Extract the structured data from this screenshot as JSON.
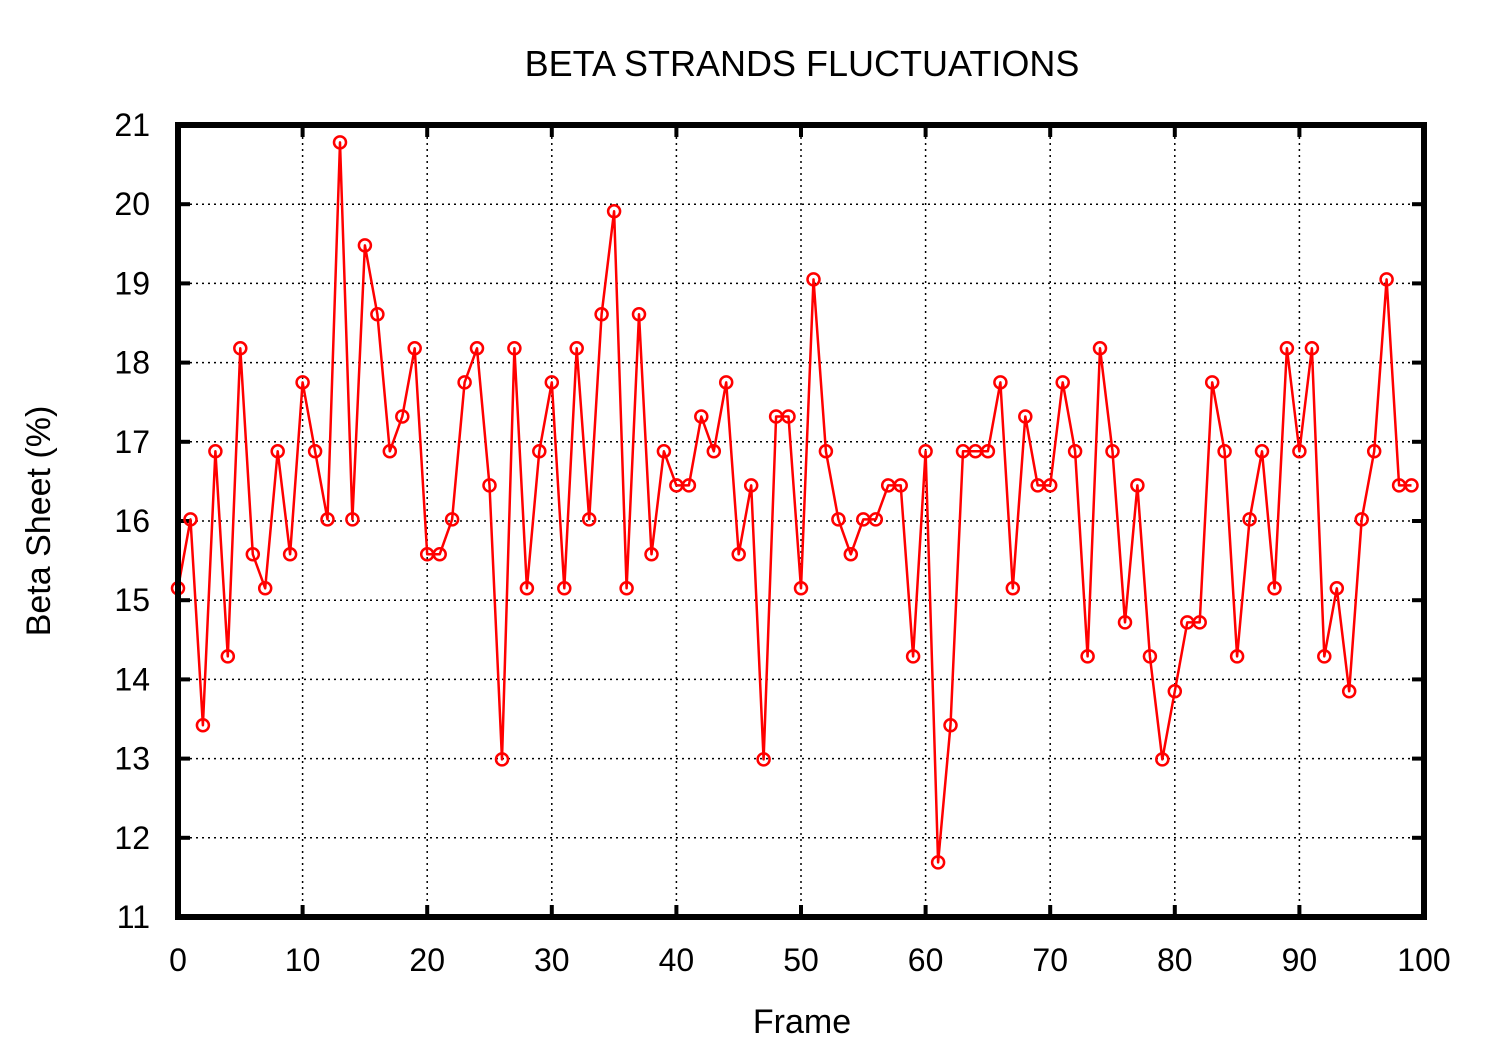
{
  "chart_data": {
    "type": "line",
    "title": "BETA STRANDS FLUCTUATIONS",
    "xlabel": "Frame",
    "ylabel": "Beta Sheet (%)",
    "xlim": [
      0,
      100
    ],
    "ylim": [
      11,
      21
    ],
    "xticks": [
      "0",
      "10",
      "20",
      "30",
      "40",
      "50",
      "60",
      "70",
      "80",
      "90",
      "100"
    ],
    "yticks": [
      "11",
      "12",
      "13",
      "14",
      "15",
      "16",
      "17",
      "18",
      "19",
      "20",
      "21"
    ],
    "grid": true,
    "color": "#ff0000",
    "marker": "open-circle",
    "series": [
      {
        "x": [
          0,
          1,
          2,
          3,
          4,
          5,
          6,
          7,
          8,
          9,
          10,
          11,
          12,
          13,
          14,
          15,
          16,
          17,
          18,
          19,
          20,
          21,
          22,
          23,
          24,
          25,
          26,
          27,
          28,
          29,
          30,
          31,
          32,
          33,
          34,
          35,
          36,
          37,
          38,
          39,
          40,
          41,
          42,
          43,
          44,
          45,
          46,
          47,
          48,
          49,
          50,
          51,
          52,
          53,
          54,
          55,
          56,
          57,
          58,
          59,
          60,
          61,
          62,
          63,
          64,
          65,
          66,
          67,
          68,
          69,
          70,
          71,
          72,
          73,
          74,
          75,
          76,
          77,
          78,
          79,
          80,
          81,
          82,
          83,
          84,
          85,
          86,
          87,
          88,
          89,
          90,
          91,
          92,
          93,
          94,
          95,
          96,
          97,
          98,
          99
        ],
        "values": [
          15.15,
          16.02,
          13.42,
          16.88,
          14.29,
          18.18,
          15.58,
          15.15,
          16.88,
          15.58,
          17.75,
          16.88,
          16.02,
          20.78,
          16.02,
          19.48,
          18.61,
          16.88,
          17.32,
          18.18,
          15.58,
          15.58,
          16.02,
          17.75,
          18.18,
          16.45,
          12.99,
          18.18,
          15.15,
          16.88,
          17.75,
          15.15,
          18.18,
          16.02,
          18.61,
          19.91,
          15.15,
          18.61,
          15.58,
          16.88,
          16.45,
          16.45,
          17.32,
          16.88,
          17.75,
          15.58,
          16.45,
          12.99,
          17.32,
          17.32,
          15.15,
          19.05,
          16.88,
          16.02,
          15.58,
          16.02,
          16.02,
          16.45,
          16.45,
          14.29,
          16.88,
          11.69,
          13.42,
          16.88,
          16.88,
          16.88,
          17.75,
          15.15,
          17.32,
          16.45,
          16.45,
          17.75,
          16.88,
          14.29,
          18.18,
          16.88,
          14.72,
          16.45,
          14.29,
          12.99,
          13.85,
          14.72,
          14.72,
          17.75,
          16.88,
          14.29,
          16.02,
          16.88,
          15.15,
          18.18,
          16.88,
          18.18,
          14.29,
          15.15,
          13.85,
          16.02,
          16.88,
          19.05,
          16.45,
          16.45
        ]
      }
    ]
  }
}
